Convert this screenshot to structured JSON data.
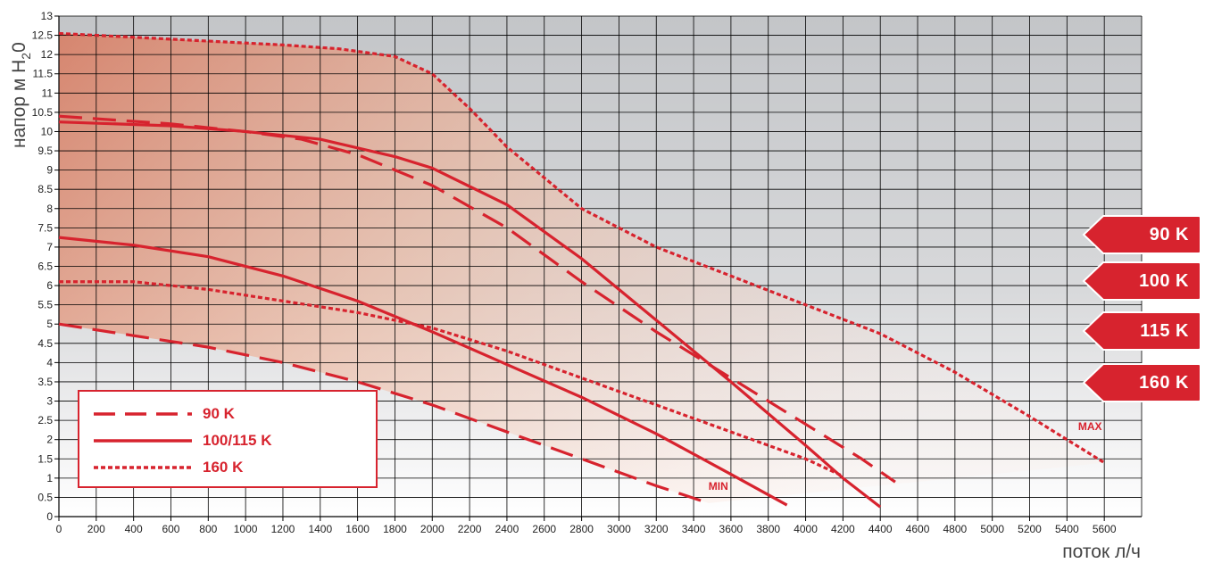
{
  "chart_data": {
    "type": "line",
    "xlabel": "поток л/ч",
    "ylabel_main": "напор м H",
    "ylabel_sub": "2",
    "ylabel_tail": "0",
    "xlim": [
      0,
      5800
    ],
    "ylim": [
      0,
      13
    ],
    "x_ticks": [
      0,
      200,
      400,
      600,
      800,
      1000,
      1200,
      1400,
      1600,
      1800,
      2000,
      2200,
      2400,
      2600,
      2800,
      3000,
      3200,
      3400,
      3600,
      3800,
      4000,
      4200,
      4400,
      4600,
      4800,
      5000,
      5200,
      5400,
      5600
    ],
    "y_ticks": [
      0,
      0.5,
      1,
      1.5,
      2,
      2.5,
      3,
      3.5,
      4,
      4.5,
      5,
      5.5,
      6,
      6.5,
      7,
      7.5,
      8,
      8.5,
      9,
      9.5,
      10,
      10.5,
      11,
      11.5,
      12,
      12.5,
      13
    ],
    "grid": true,
    "series": [
      {
        "name": "90 K",
        "curve": "max",
        "style": "dashed",
        "color": "#d7232e",
        "x": [
          0,
          600,
          1000,
          1300,
          1600,
          2000,
          2400,
          2800,
          3200,
          3600,
          4000,
          4300,
          4480
        ],
        "y": [
          10.4,
          10.2,
          10,
          9.8,
          9.4,
          8.6,
          7.5,
          6.1,
          4.8,
          3.6,
          2.4,
          1.5,
          0.9
        ]
      },
      {
        "name": "90 K",
        "curve": "min",
        "style": "dashed",
        "color": "#d7232e",
        "x": [
          0,
          400,
          800,
          1200,
          1600,
          2000,
          2400,
          2800,
          3200,
          3480
        ],
        "y": [
          5,
          4.7,
          4.4,
          4,
          3.5,
          2.9,
          2.2,
          1.5,
          0.8,
          0.35
        ]
      },
      {
        "name": "100/115 K",
        "curve": "max",
        "style": "solid",
        "color": "#d7232e",
        "x": [
          0,
          600,
          1000,
          1400,
          1800,
          2000,
          2400,
          2800,
          3200,
          3600,
          4000,
          4200,
          4400
        ],
        "y": [
          10.25,
          10.15,
          10,
          9.8,
          9.35,
          9.05,
          8.1,
          6.7,
          5.1,
          3.5,
          1.85,
          1,
          0.25
        ]
      },
      {
        "name": "100/115 K",
        "curve": "min",
        "style": "solid",
        "color": "#d7232e",
        "x": [
          0,
          400,
          800,
          1200,
          1600,
          2000,
          2400,
          2800,
          3200,
          3600,
          3900
        ],
        "y": [
          7.25,
          7.05,
          6.75,
          6.25,
          5.6,
          4.8,
          3.95,
          3.1,
          2.15,
          1.1,
          0.3
        ]
      },
      {
        "name": "160 K",
        "curve": "max",
        "style": "dotted",
        "color": "#d7232e",
        "x": [
          0,
          400,
          800,
          1200,
          1500,
          1800,
          2000,
          2200,
          2400,
          2800,
          3200,
          3600,
          4000,
          4400,
          4800,
          5200,
          5600
        ],
        "y": [
          12.55,
          12.45,
          12.35,
          12.25,
          12.15,
          11.95,
          11.5,
          10.6,
          9.6,
          8,
          7,
          6.25,
          5.5,
          4.75,
          3.75,
          2.6,
          1.4
        ]
      },
      {
        "name": "160 K",
        "curve": "min",
        "style": "dotted",
        "color": "#d7232e",
        "x": [
          0,
          400,
          800,
          1200,
          1600,
          2000,
          2400,
          2800,
          3200,
          3600,
          4000,
          4200
        ],
        "y": [
          6.1,
          6.1,
          5.9,
          5.6,
          5.3,
          4.9,
          4.3,
          3.6,
          2.9,
          2.2,
          1.5,
          1.05
        ]
      }
    ],
    "annotations": [
      {
        "text": "MAX",
        "x": 5460,
        "y": 2.25
      },
      {
        "text": "MIN",
        "x": 3480,
        "y": 0.7
      }
    ]
  },
  "legend": {
    "items": [
      {
        "label": "90 K",
        "style": "dashed"
      },
      {
        "label": "100/115 K",
        "style": "solid"
      },
      {
        "label": "160 K",
        "style": "dotted"
      }
    ]
  },
  "tags": [
    {
      "label": "90 K"
    },
    {
      "label": "100 K"
    },
    {
      "label": "115 K"
    },
    {
      "label": "160 K"
    }
  ],
  "colors": {
    "accent": "#d7232e",
    "plot_top": "#c3c5c8",
    "plot_bottom": "#ffffff"
  }
}
